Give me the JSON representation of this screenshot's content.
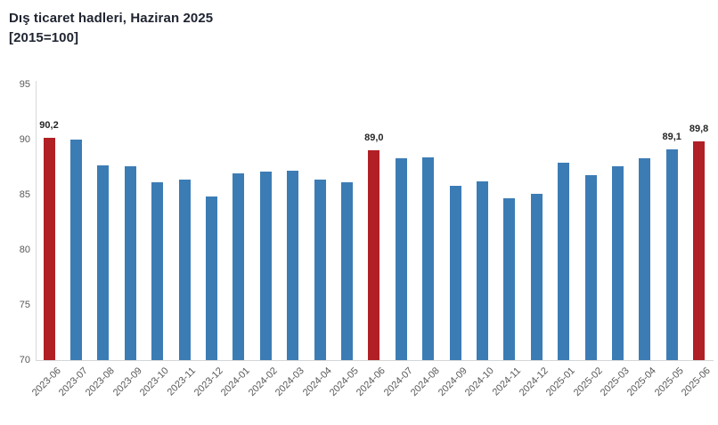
{
  "title": {
    "line1": "Dış ticaret hadleri, Haziran 2025",
    "line2": "[2015=100]"
  },
  "chart_data": {
    "type": "bar",
    "title": "Dış ticaret hadleri, Haziran 2025",
    "subtitle": "[2015=100]",
    "xlabel": "",
    "ylabel": "",
    "ylim": [
      70,
      95
    ],
    "yticks": [
      70,
      75,
      80,
      85,
      90,
      95
    ],
    "grid": false,
    "legend": "none",
    "categories": [
      "2023-06",
      "2023-07",
      "2023-08",
      "2023-09",
      "2023-10",
      "2023-11",
      "2023-12",
      "2024-01",
      "2024-02",
      "2024-03",
      "2024-04",
      "2024-05",
      "2024-06",
      "2024-07",
      "2024-08",
      "2024-09",
      "2024-10",
      "2024-11",
      "2024-12",
      "2025-01",
      "2025-02",
      "2025-03",
      "2025-04",
      "2025-05",
      "2025-06"
    ],
    "values": [
      90.2,
      90.0,
      87.7,
      87.6,
      86.1,
      86.4,
      84.8,
      86.9,
      87.1,
      87.2,
      86.4,
      86.1,
      89.0,
      88.3,
      88.4,
      85.8,
      86.2,
      84.7,
      85.1,
      87.9,
      86.8,
      87.6,
      88.3,
      89.1,
      89.8
    ],
    "data_labels": {
      "0": "90,2",
      "12": "89,0",
      "23": "89,1",
      "24": "89,8"
    },
    "highlight_indices": [
      0,
      12,
      24
    ],
    "colors": {
      "bar": "#3c7cb5",
      "highlight": "#b02025",
      "axis_line": "#d9d9d9",
      "tick_text": "#595959",
      "label_text": "#262626",
      "title_text": "#1f2430"
    }
  }
}
